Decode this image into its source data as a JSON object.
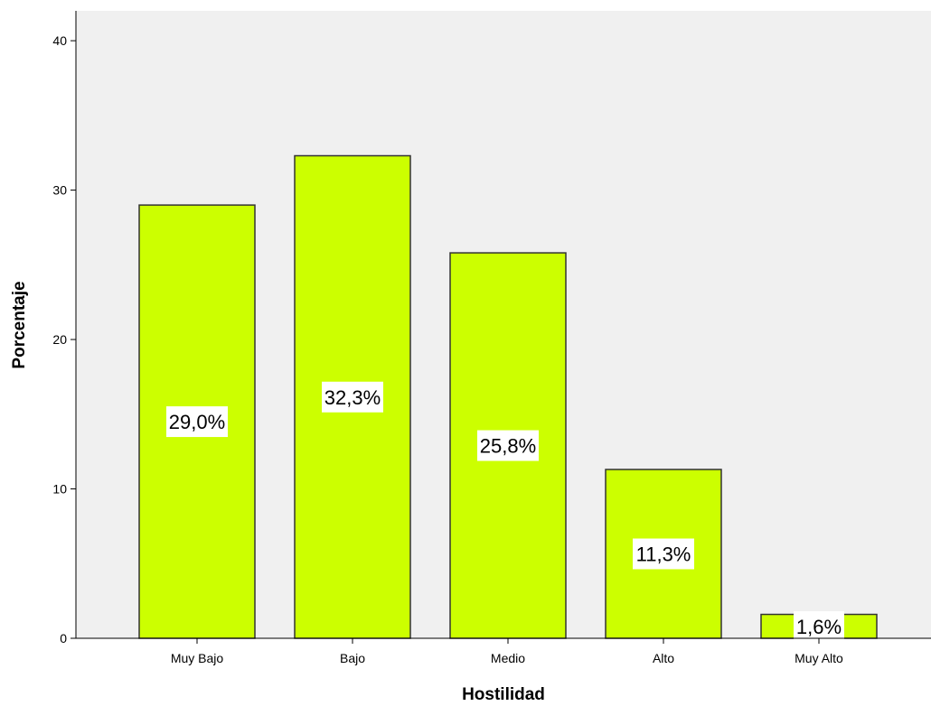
{
  "chart_data": {
    "type": "bar",
    "title": "",
    "xlabel": "Hostilidad",
    "ylabel": "Porcentaje",
    "categories": [
      "Muy Bajo",
      "Bajo",
      "Medio",
      "Alto",
      "Muy Alto"
    ],
    "values": [
      29.0,
      32.3,
      25.8,
      11.3,
      1.6
    ],
    "data_labels": [
      "29,0%",
      "32,3%",
      "25,8%",
      "11,3%",
      "1,6%"
    ],
    "ylim": [
      0,
      42
    ],
    "yticks": [
      "0",
      "10",
      "20",
      "30",
      "40"
    ],
    "grid": false,
    "legend": "none"
  },
  "colors": {
    "bar_fill": "#ccff00",
    "bar_stroke": "#333333",
    "plot_background": "#f0f0f0",
    "label_background": "#ffffff"
  }
}
